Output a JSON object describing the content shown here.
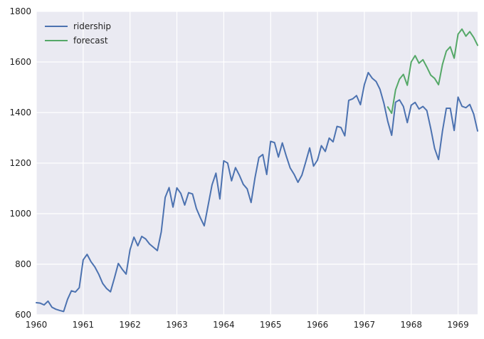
{
  "chart_data": {
    "type": "line",
    "title": "",
    "xlabel": "",
    "ylabel": "",
    "grid": true,
    "legend_position": "top-left",
    "xlim": [
      1960.0,
      1969.4167
    ],
    "ylim": [
      600,
      1800
    ],
    "x_ticks": [
      {
        "value": 1960,
        "label": "1960"
      },
      {
        "value": 1961,
        "label": "1961"
      },
      {
        "value": 1962,
        "label": "1962"
      },
      {
        "value": 1963,
        "label": "1963"
      },
      {
        "value": 1964,
        "label": "1964"
      },
      {
        "value": 1965,
        "label": "1965"
      },
      {
        "value": 1966,
        "label": "1966"
      },
      {
        "value": 1967,
        "label": "1967"
      },
      {
        "value": 1968,
        "label": "1968"
      },
      {
        "value": 1969,
        "label": "1969"
      }
    ],
    "y_ticks": [
      {
        "value": 600,
        "label": "600"
      },
      {
        "value": 800,
        "label": "800"
      },
      {
        "value": 1000,
        "label": "1000"
      },
      {
        "value": 1200,
        "label": "1200"
      },
      {
        "value": 1400,
        "label": "1400"
      },
      {
        "value": 1600,
        "label": "1600"
      },
      {
        "value": 1800,
        "label": "1800"
      }
    ],
    "series": [
      {
        "name": "ridership",
        "color": "#4c72b0",
        "start": "1960-01",
        "frequency": "monthly",
        "values": [
          648,
          646,
          639,
          654,
          630,
          622,
          617,
          613,
          661,
          695,
          690,
          707,
          817,
          839,
          810,
          789,
          760,
          724,
          704,
          691,
          745,
          803,
          780,
          761,
          857,
          907,
          873,
          910,
          900,
          880,
          867,
          854,
          928,
          1064,
          1103,
          1026,
          1102,
          1080,
          1034,
          1083,
          1078,
          1020,
          984,
          952,
          1033,
          1114,
          1160,
          1058,
          1209,
          1200,
          1130,
          1182,
          1152,
          1116,
          1098,
          1044,
          1142,
          1222,
          1234,
          1155,
          1286,
          1281,
          1224,
          1280,
          1228,
          1181,
          1156,
          1124,
          1152,
          1205,
          1260,
          1188,
          1212,
          1269,
          1246,
          1299,
          1284,
          1345,
          1341,
          1308,
          1448,
          1454,
          1467,
          1431,
          1510,
          1558,
          1536,
          1523,
          1492,
          1437,
          1365,
          1310,
          1441,
          1450,
          1424,
          1360,
          1429,
          1440,
          1414,
          1424,
          1408,
          1337,
          1258,
          1214,
          1326,
          1417,
          1417,
          1329,
          1461,
          1425,
          1419,
          1432,
          1394,
          1327
        ]
      },
      {
        "name": "forecast",
        "color": "#55a868",
        "start": "1967-07",
        "frequency": "monthly",
        "values": [
          1422,
          1397,
          1490,
          1532,
          1551,
          1508,
          1600,
          1625,
          1595,
          1609,
          1580,
          1548,
          1535,
          1510,
          1590,
          1643,
          1660,
          1615,
          1710,
          1730,
          1702,
          1720,
          1697,
          1666
        ]
      }
    ]
  }
}
